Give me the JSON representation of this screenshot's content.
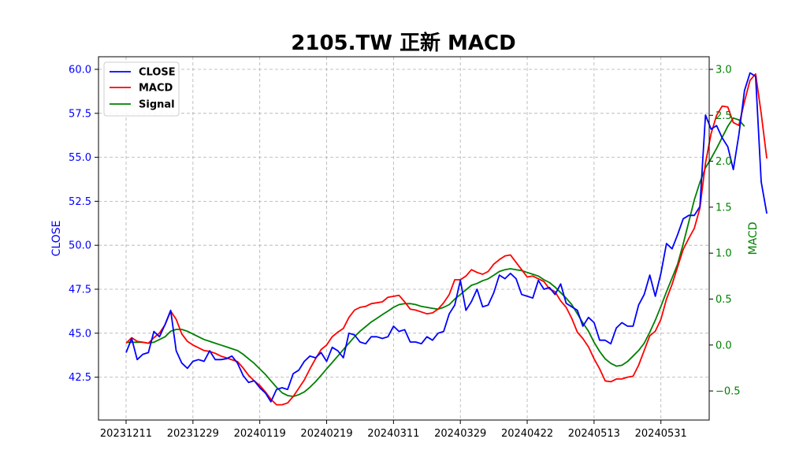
{
  "chart_data": {
    "type": "line",
    "title": "2105.TW 正新 MACD",
    "xlabel": "",
    "ylabel_left": "CLOSE",
    "ylabel_right": "MACD",
    "ylim_left": [
      40.3,
      60.7
    ],
    "ylim_right": [
      -0.83,
      3.11
    ],
    "yticks_left": [
      "42.5",
      "45.0",
      "47.5",
      "50.0",
      "52.5",
      "55.0",
      "57.5",
      "60.0"
    ],
    "yticks_right": [
      "−0.5",
      "0.0",
      "0.5",
      "1.0",
      "1.5",
      "2.0",
      "2.5",
      "3.0"
    ],
    "x_tick_labels": [
      {
        "label": "20231211",
        "index": 0
      },
      {
        "label": "20231229",
        "index": 12
      },
      {
        "label": "20240119",
        "index": 24
      },
      {
        "label": "20240219",
        "index": 36
      },
      {
        "label": "20240311",
        "index": 48
      },
      {
        "label": "20240329",
        "index": 60
      },
      {
        "label": "20240422",
        "index": 72
      },
      {
        "label": "20240513",
        "index": 84
      },
      {
        "label": "20240531",
        "index": 96
      }
    ],
    "grid": true,
    "legend_position": "top-left",
    "series": [
      {
        "name": "CLOSE",
        "axis": "left",
        "color": "#0000ff",
        "values": [
          43.9,
          44.7,
          43.5,
          43.8,
          43.9,
          45.1,
          44.8,
          45.5,
          46.3,
          44.0,
          43.3,
          43.0,
          43.4,
          43.5,
          43.4,
          44.0,
          43.5,
          43.5,
          43.55,
          43.7,
          43.3,
          42.6,
          42.2,
          42.3,
          41.9,
          41.6,
          41.1,
          41.8,
          41.9,
          41.8,
          42.7,
          42.9,
          43.4,
          43.7,
          43.6,
          43.9,
          43.4,
          44.2,
          44.0,
          43.6,
          45.0,
          44.9,
          44.5,
          44.4,
          44.8,
          44.8,
          44.7,
          44.8,
          45.4,
          45.1,
          45.2,
          44.5,
          44.5,
          44.4,
          44.8,
          44.6,
          45.0,
          45.1,
          46.1,
          46.6,
          48.0,
          46.3,
          46.8,
          47.5,
          46.5,
          46.6,
          47.3,
          48.3,
          48.1,
          48.4,
          48.1,
          47.2,
          47.1,
          47.0,
          48.0,
          47.5,
          47.6,
          47.2,
          47.8,
          46.7,
          46.5,
          46.3,
          45.4,
          45.9,
          45.6,
          44.6,
          44.6,
          44.4,
          45.3,
          45.6,
          45.4,
          45.4,
          46.6,
          47.2,
          48.3,
          47.1,
          48.4,
          50.1,
          49.8,
          50.6,
          51.5,
          51.7,
          51.7,
          52.2,
          57.4,
          56.6,
          56.8,
          56.1,
          55.6,
          54.3,
          56.3,
          58.8,
          59.8,
          59.6,
          53.6,
          51.8
        ]
      },
      {
        "name": "MACD",
        "axis": "right",
        "color": "#ff0000",
        "values": [
          0.02,
          0.08,
          0.04,
          0.03,
          0.02,
          0.08,
          0.13,
          0.22,
          0.37,
          0.28,
          0.12,
          0.04,
          0.0,
          -0.03,
          -0.06,
          -0.07,
          -0.09,
          -0.12,
          -0.14,
          -0.16,
          -0.18,
          -0.25,
          -0.33,
          -0.39,
          -0.44,
          -0.51,
          -0.59,
          -0.65,
          -0.65,
          -0.63,
          -0.56,
          -0.47,
          -0.38,
          -0.26,
          -0.15,
          -0.05,
          0.0,
          0.09,
          0.14,
          0.18,
          0.3,
          0.38,
          0.41,
          0.42,
          0.45,
          0.46,
          0.47,
          0.52,
          0.53,
          0.54,
          0.47,
          0.39,
          0.38,
          0.36,
          0.34,
          0.35,
          0.39,
          0.46,
          0.55,
          0.71,
          0.71,
          0.75,
          0.82,
          0.79,
          0.77,
          0.8,
          0.88,
          0.93,
          0.97,
          0.98,
          0.9,
          0.82,
          0.74,
          0.75,
          0.72,
          0.69,
          0.61,
          0.58,
          0.48,
          0.41,
          0.29,
          0.14,
          0.07,
          -0.02,
          -0.15,
          -0.26,
          -0.39,
          -0.4,
          -0.37,
          -0.37,
          -0.35,
          -0.34,
          -0.22,
          -0.06,
          0.1,
          0.15,
          0.28,
          0.5,
          0.66,
          0.85,
          1.04,
          1.16,
          1.27,
          1.49,
          1.98,
          2.3,
          2.5,
          2.6,
          2.59,
          2.42,
          2.39,
          2.65,
          2.88,
          2.95,
          2.52,
          2.03
        ]
      },
      {
        "name": "Signal",
        "axis": "right",
        "color": "#008000",
        "values": [
          0.03,
          0.03,
          0.03,
          0.03,
          0.02,
          0.03,
          0.06,
          0.09,
          0.15,
          0.17,
          0.17,
          0.15,
          0.12,
          0.09,
          0.06,
          0.04,
          0.02,
          0.0,
          -0.02,
          -0.04,
          -0.06,
          -0.1,
          -0.15,
          -0.2,
          -0.26,
          -0.32,
          -0.39,
          -0.46,
          -0.52,
          -0.55,
          -0.56,
          -0.54,
          -0.51,
          -0.46,
          -0.4,
          -0.33,
          -0.26,
          -0.19,
          -0.12,
          -0.05,
          0.02,
          0.09,
          0.15,
          0.2,
          0.25,
          0.29,
          0.33,
          0.37,
          0.41,
          0.44,
          0.45,
          0.45,
          0.44,
          0.42,
          0.41,
          0.4,
          0.39,
          0.41,
          0.44,
          0.5,
          0.55,
          0.6,
          0.65,
          0.67,
          0.7,
          0.72,
          0.76,
          0.8,
          0.82,
          0.83,
          0.82,
          0.81,
          0.79,
          0.77,
          0.75,
          0.71,
          0.68,
          0.63,
          0.57,
          0.51,
          0.44,
          0.34,
          0.24,
          0.15,
          0.03,
          -0.07,
          -0.15,
          -0.2,
          -0.23,
          -0.22,
          -0.18,
          -0.12,
          -0.06,
          0.02,
          0.14,
          0.27,
          0.42,
          0.58,
          0.73,
          0.88,
          1.1,
          1.34,
          1.58,
          1.77,
          1.93,
          2.03,
          2.14,
          2.26,
          2.38,
          2.47,
          2.45,
          2.38
        ]
      }
    ]
  }
}
